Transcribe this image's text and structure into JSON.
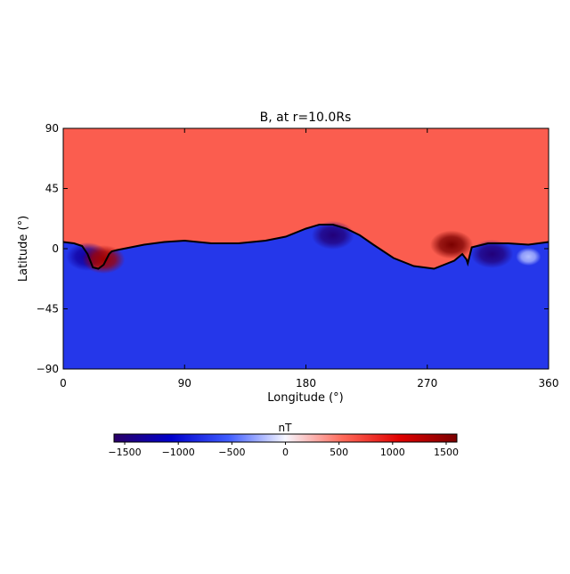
{
  "chart_data": {
    "type": "heatmap",
    "title": "B, at r=10.0Rs",
    "xlabel": "Longitude (°)",
    "ylabel": "Latitude (°)",
    "xlim": [
      0,
      360
    ],
    "ylim": [
      -90,
      90
    ],
    "x_ticks": [
      0,
      90,
      180,
      270,
      360
    ],
    "y_ticks": [
      90,
      45,
      0,
      -45,
      -90
    ],
    "x_tick_labels": [
      "0",
      "90",
      "180",
      "270",
      "360"
    ],
    "y_tick_labels": [
      "90",
      "45",
      "0",
      "−45",
      "−90"
    ],
    "value_range": [
      -1600,
      1600
    ],
    "background_north": 600,
    "background_south": -750,
    "colorbar": {
      "label": "nT",
      "ticks": [
        -1500,
        -1000,
        -500,
        0,
        500,
        1000,
        1500
      ],
      "tick_labels": [
        "−1500",
        "−1000",
        "−500",
        "0",
        "500",
        "1000",
        "1500"
      ],
      "colors": [
        "#2a0066",
        "#0000cc",
        "#3f5cff",
        "#f7f7ff",
        "#ff6a5a",
        "#e00000",
        "#7a0000"
      ]
    },
    "neutral_line": {
      "lon": [
        0,
        8,
        14,
        18,
        22,
        26,
        30,
        34,
        36,
        40,
        50,
        60,
        75,
        90,
        110,
        130,
        150,
        165,
        180,
        190,
        200,
        210,
        220,
        230,
        245,
        260,
        275,
        290,
        296,
        299,
        300,
        303,
        315,
        330,
        345,
        360
      ],
      "lat": [
        5,
        4,
        2,
        -4,
        -14,
        -15,
        -12,
        -4,
        -2,
        -1,
        1,
        3,
        5,
        6,
        4,
        4,
        6,
        9,
        15,
        18,
        18,
        15,
        10,
        3,
        -7,
        -13,
        -15,
        -9,
        -4,
        -8,
        -11,
        1,
        4,
        4,
        3,
        5
      ]
    },
    "features": [
      {
        "lon": 18,
        "lat": -6,
        "value": -1300
      },
      {
        "lon": 30,
        "lat": -8,
        "value": 1400
      },
      {
        "lon": 200,
        "lat": 10,
        "value": -1500
      },
      {
        "lon": 288,
        "lat": 3,
        "value": 1700
      },
      {
        "lon": 318,
        "lat": -4,
        "value": -1500
      },
      {
        "lon": 345,
        "lat": -6,
        "value": -200
      }
    ]
  }
}
